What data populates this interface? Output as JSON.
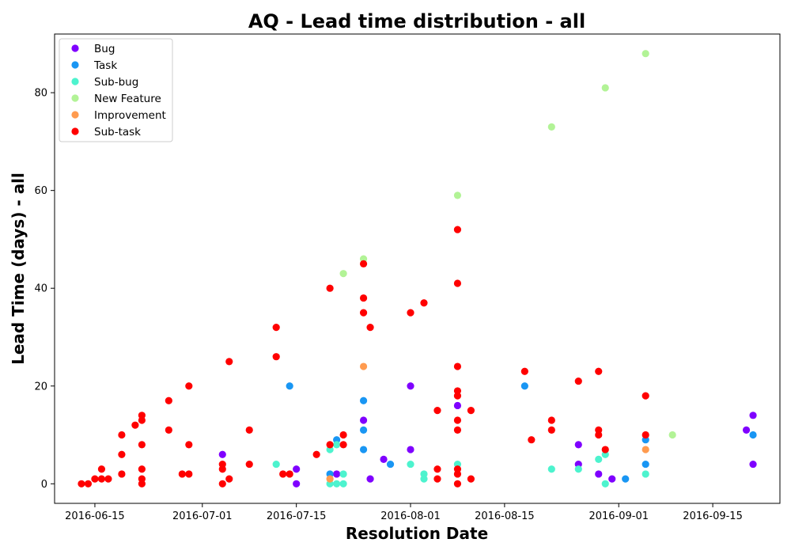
{
  "chart_data": {
    "type": "scatter",
    "title": "AQ - Lead time distribution - all",
    "xlabel": "Resolution Date",
    "ylabel": "Lead Time (days) - all",
    "x_type": "date",
    "xlim": [
      "2016-06-09",
      "2016-09-25"
    ],
    "ylim": [
      -4,
      92
    ],
    "x_ticks": [
      "2016-06-15",
      "2016-07-01",
      "2016-07-15",
      "2016-08-01",
      "2016-08-15",
      "2016-09-01",
      "2016-09-15"
    ],
    "y_ticks": [
      0,
      20,
      40,
      60,
      80
    ],
    "grid": false,
    "legend_position": "upper-left",
    "series": [
      {
        "name": "Bug",
        "color": "#7f00ff",
        "points": [
          [
            "2016-07-04",
            6
          ],
          [
            "2016-07-15",
            0
          ],
          [
            "2016-07-15",
            3
          ],
          [
            "2016-07-21",
            2
          ],
          [
            "2016-07-25",
            13
          ],
          [
            "2016-07-26",
            1
          ],
          [
            "2016-07-28",
            5
          ],
          [
            "2016-08-01",
            20
          ],
          [
            "2016-08-01",
            7
          ],
          [
            "2016-08-08",
            16
          ],
          [
            "2016-08-26",
            4
          ],
          [
            "2016-08-26",
            8
          ],
          [
            "2016-08-29",
            2
          ],
          [
            "2016-08-31",
            1
          ],
          [
            "2016-09-20",
            11
          ],
          [
            "2016-09-21",
            14
          ],
          [
            "2016-09-21",
            4
          ]
        ]
      },
      {
        "name": "Task",
        "color": "#1996f3",
        "points": [
          [
            "2016-07-14",
            20
          ],
          [
            "2016-07-20",
            2
          ],
          [
            "2016-07-21",
            9
          ],
          [
            "2016-07-25",
            17
          ],
          [
            "2016-07-25",
            11
          ],
          [
            "2016-07-25",
            7
          ],
          [
            "2016-07-29",
            4
          ],
          [
            "2016-08-18",
            20
          ],
          [
            "2016-09-02",
            1
          ],
          [
            "2016-09-05",
            9
          ],
          [
            "2016-09-05",
            4
          ],
          [
            "2016-09-21",
            10
          ]
        ]
      },
      {
        "name": "Sub-bug",
        "color": "#4df3ce",
        "points": [
          [
            "2016-07-12",
            4
          ],
          [
            "2016-07-20",
            7
          ],
          [
            "2016-07-20",
            0
          ],
          [
            "2016-07-21",
            0
          ],
          [
            "2016-07-21",
            8
          ],
          [
            "2016-07-22",
            2
          ],
          [
            "2016-07-22",
            0
          ],
          [
            "2016-08-01",
            4
          ],
          [
            "2016-08-03",
            2
          ],
          [
            "2016-08-03",
            1
          ],
          [
            "2016-08-08",
            4
          ],
          [
            "2016-08-22",
            3
          ],
          [
            "2016-08-26",
            3
          ],
          [
            "2016-08-29",
            5
          ],
          [
            "2016-08-30",
            6
          ],
          [
            "2016-08-30",
            0
          ],
          [
            "2016-09-05",
            2
          ]
        ]
      },
      {
        "name": "New Feature",
        "color": "#b2f396",
        "points": [
          [
            "2016-07-22",
            43
          ],
          [
            "2016-07-25",
            46
          ],
          [
            "2016-08-08",
            59
          ],
          [
            "2016-08-22",
            73
          ],
          [
            "2016-08-30",
            81
          ],
          [
            "2016-09-05",
            88
          ],
          [
            "2016-09-09",
            10
          ]
        ]
      },
      {
        "name": "Improvement",
        "color": "#ff9b4f",
        "points": [
          [
            "2016-07-20",
            1
          ],
          [
            "2016-07-25",
            24
          ],
          [
            "2016-09-05",
            7
          ]
        ]
      },
      {
        "name": "Sub-task",
        "color": "#ff0000",
        "points": [
          [
            "2016-06-13",
            0
          ],
          [
            "2016-06-14",
            0
          ],
          [
            "2016-06-15",
            1
          ],
          [
            "2016-06-16",
            3
          ],
          [
            "2016-06-16",
            1
          ],
          [
            "2016-06-17",
            1
          ],
          [
            "2016-06-19",
            10
          ],
          [
            "2016-06-19",
            6
          ],
          [
            "2016-06-19",
            2
          ],
          [
            "2016-06-21",
            12
          ],
          [
            "2016-06-22",
            13
          ],
          [
            "2016-06-22",
            14
          ],
          [
            "2016-06-22",
            8
          ],
          [
            "2016-06-22",
            3
          ],
          [
            "2016-06-22",
            1
          ],
          [
            "2016-06-22",
            0
          ],
          [
            "2016-06-26",
            17
          ],
          [
            "2016-06-26",
            11
          ],
          [
            "2016-06-28",
            2
          ],
          [
            "2016-06-29",
            20
          ],
          [
            "2016-06-29",
            8
          ],
          [
            "2016-06-29",
            2
          ],
          [
            "2016-07-04",
            4
          ],
          [
            "2016-07-04",
            3
          ],
          [
            "2016-07-04",
            0
          ],
          [
            "2016-07-05",
            25
          ],
          [
            "2016-07-05",
            1
          ],
          [
            "2016-07-08",
            11
          ],
          [
            "2016-07-08",
            4
          ],
          [
            "2016-07-12",
            32
          ],
          [
            "2016-07-12",
            26
          ],
          [
            "2016-07-13",
            2
          ],
          [
            "2016-07-14",
            2
          ],
          [
            "2016-07-18",
            6
          ],
          [
            "2016-07-20",
            40
          ],
          [
            "2016-07-20",
            8
          ],
          [
            "2016-07-22",
            10
          ],
          [
            "2016-07-22",
            8
          ],
          [
            "2016-07-25",
            45
          ],
          [
            "2016-07-25",
            38
          ],
          [
            "2016-07-25",
            35
          ],
          [
            "2016-07-26",
            32
          ],
          [
            "2016-08-01",
            35
          ],
          [
            "2016-08-03",
            37
          ],
          [
            "2016-08-05",
            15
          ],
          [
            "2016-08-05",
            3
          ],
          [
            "2016-08-05",
            1
          ],
          [
            "2016-08-08",
            52
          ],
          [
            "2016-08-08",
            41
          ],
          [
            "2016-08-08",
            24
          ],
          [
            "2016-08-08",
            19
          ],
          [
            "2016-08-08",
            18
          ],
          [
            "2016-08-08",
            13
          ],
          [
            "2016-08-08",
            11
          ],
          [
            "2016-08-08",
            3
          ],
          [
            "2016-08-08",
            2
          ],
          [
            "2016-08-08",
            0
          ],
          [
            "2016-08-10",
            15
          ],
          [
            "2016-08-10",
            1
          ],
          [
            "2016-08-18",
            23
          ],
          [
            "2016-08-19",
            9
          ],
          [
            "2016-08-22",
            13
          ],
          [
            "2016-08-22",
            11
          ],
          [
            "2016-08-26",
            21
          ],
          [
            "2016-08-29",
            23
          ],
          [
            "2016-08-29",
            11
          ],
          [
            "2016-08-29",
            10
          ],
          [
            "2016-08-30",
            7
          ],
          [
            "2016-09-05",
            18
          ],
          [
            "2016-09-05",
            10
          ]
        ]
      }
    ]
  }
}
